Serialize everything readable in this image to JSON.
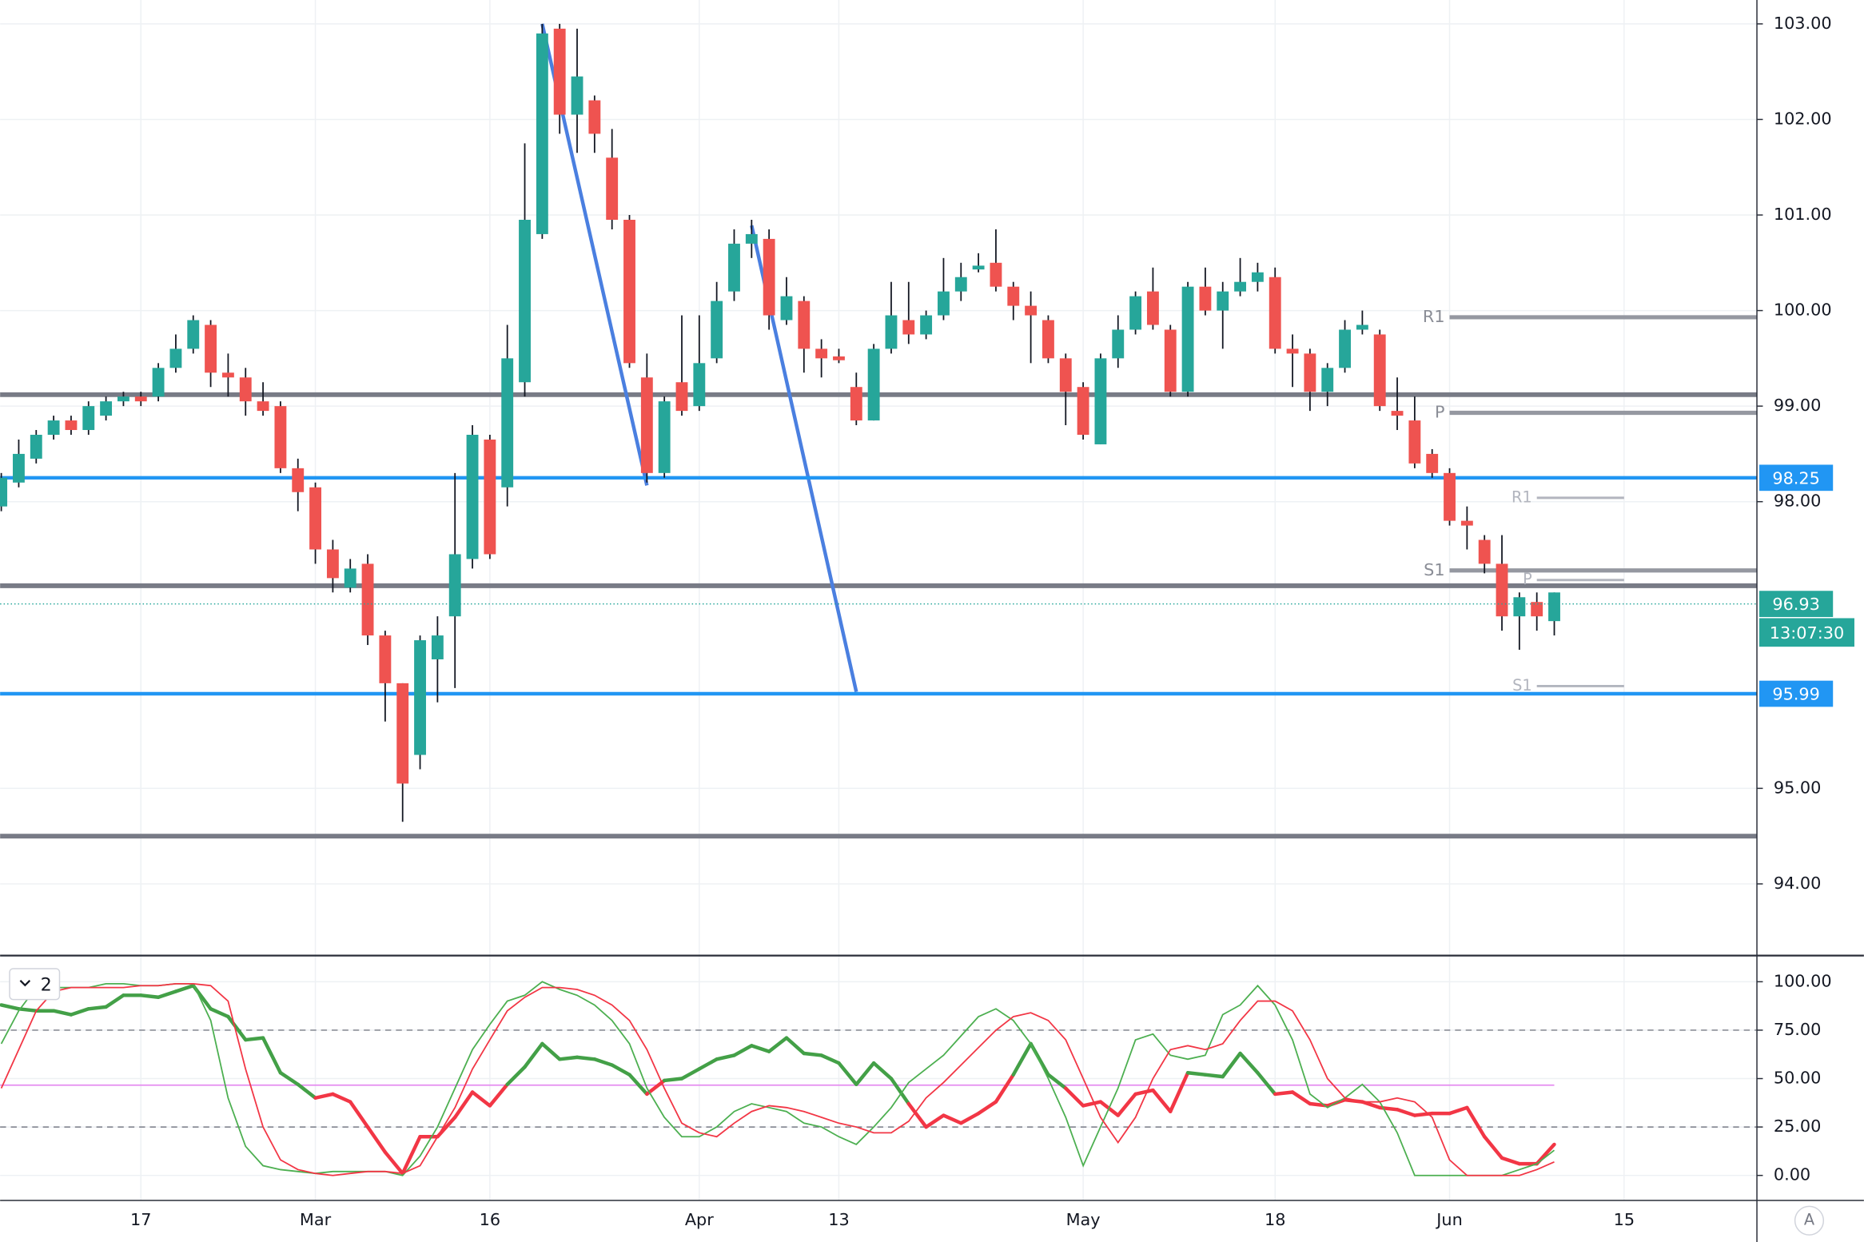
{
  "chart_data": [
    {
      "type": "candlestick",
      "categories": [
        null,
        null,
        null,
        null,
        null,
        null,
        null,
        null,
        "17",
        null,
        null,
        null,
        null,
        null,
        null,
        null,
        null,
        null,
        "Mar",
        null,
        null,
        null,
        null,
        null,
        null,
        null,
        null,
        null,
        "16",
        null,
        null,
        null,
        null,
        null,
        null,
        null,
        null,
        null,
        null,
        null,
        "Apr",
        null,
        null,
        null,
        null,
        null,
        null,
        null,
        "13",
        null,
        null,
        null,
        null,
        null,
        null,
        null,
        null,
        null,
        null,
        null,
        null,
        null,
        "May",
        null,
        null,
        null,
        null,
        null,
        null,
        null,
        null,
        null,
        null,
        "18",
        null,
        null,
        null,
        null,
        null,
        null,
        null,
        null,
        null,
        "Jun",
        null,
        null,
        null,
        null,
        null,
        null,
        null,
        null,
        null,
        "15"
      ],
      "open": [
        97.95,
        98.2,
        98.45,
        98.7,
        98.85,
        98.75,
        98.9,
        99.05,
        99.1,
        99.1,
        99.4,
        99.6,
        99.85,
        99.35,
        99.3,
        99.05,
        99.0,
        98.35,
        98.15,
        97.5,
        97.1,
        97.35,
        96.6,
        96.1,
        95.35,
        96.35,
        96.8,
        97.4,
        98.65,
        98.15,
        99.25,
        100.8,
        102.95,
        102.05,
        102.2,
        101.6,
        100.95,
        99.3,
        98.3,
        99.25,
        99.0,
        99.5,
        100.2,
        100.7,
        100.75,
        99.9,
        100.1,
        99.6,
        99.52,
        99.2,
        98.85,
        99.6,
        99.9,
        99.75,
        99.95,
        100.2,
        100.43,
        100.5,
        100.25,
        100.05,
        99.9,
        99.5,
        99.2,
        98.6,
        99.5,
        99.8,
        100.2,
        99.8,
        99.15,
        100.25,
        100.0,
        100.2,
        100.3,
        100.35,
        99.6,
        99.55,
        99.15,
        99.4,
        99.8,
        99.75,
        98.95,
        98.85,
        98.5,
        98.3,
        97.8,
        97.6,
        97.35,
        96.8,
        96.95,
        96.75,
        null,
        null,
        null,
        null
      ],
      "high": [
        98.3,
        98.65,
        98.75,
        98.9,
        98.9,
        99.05,
        99.1,
        99.15,
        99.15,
        99.45,
        99.75,
        99.95,
        99.9,
        99.55,
        99.4,
        99.25,
        99.05,
        98.45,
        98.2,
        97.6,
        97.4,
        97.45,
        96.65,
        96.1,
        96.6,
        96.8,
        98.3,
        98.8,
        98.7,
        99.85,
        101.75,
        103.0,
        103.0,
        102.95,
        102.25,
        101.9,
        101.0,
        99.55,
        99.1,
        99.95,
        99.95,
        100.3,
        100.85,
        100.95,
        100.85,
        100.35,
        100.15,
        99.7,
        99.6,
        99.35,
        99.65,
        100.3,
        100.3,
        100.0,
        100.55,
        100.5,
        100.6,
        100.85,
        100.3,
        100.2,
        99.95,
        99.55,
        99.25,
        99.55,
        99.95,
        100.2,
        100.45,
        99.85,
        100.3,
        100.45,
        100.3,
        100.55,
        100.5,
        100.45,
        99.75,
        99.6,
        99.45,
        99.9,
        100.0,
        99.8,
        99.3,
        99.1,
        98.55,
        98.35,
        97.95,
        97.65,
        97.65,
        97.05,
        97.05,
        97.05,
        null,
        null,
        null,
        null
      ],
      "low": [
        97.9,
        98.15,
        98.4,
        98.65,
        98.7,
        98.7,
        98.85,
        99.0,
        99.0,
        99.05,
        99.35,
        99.55,
        99.2,
        99.1,
        98.9,
        98.9,
        98.3,
        97.9,
        97.35,
        97.05,
        97.05,
        96.5,
        95.7,
        94.65,
        95.2,
        95.9,
        96.05,
        97.3,
        97.4,
        97.95,
        99.1,
        100.75,
        101.85,
        101.65,
        101.65,
        100.85,
        99.4,
        98.2,
        98.25,
        98.9,
        98.95,
        99.45,
        100.1,
        100.55,
        99.8,
        99.85,
        99.35,
        99.3,
        99.45,
        98.8,
        98.85,
        99.55,
        99.65,
        99.7,
        99.9,
        100.1,
        100.4,
        100.2,
        99.9,
        99.45,
        99.45,
        98.8,
        98.65,
        98.6,
        99.4,
        99.75,
        99.8,
        99.1,
        99.1,
        99.95,
        99.6,
        100.15,
        100.2,
        99.55,
        99.2,
        98.95,
        99.0,
        99.35,
        99.75,
        98.95,
        98.75,
        98.35,
        98.25,
        97.75,
        97.5,
        97.25,
        96.65,
        96.45,
        96.65,
        96.6,
        null,
        null,
        null,
        null
      ],
      "close": [
        98.25,
        98.5,
        98.7,
        98.85,
        98.75,
        99.0,
        99.05,
        99.1,
        99.05,
        99.4,
        99.6,
        99.9,
        99.35,
        99.3,
        99.05,
        98.95,
        98.35,
        98.1,
        97.5,
        97.2,
        97.3,
        96.6,
        96.1,
        95.05,
        96.55,
        96.6,
        97.45,
        98.7,
        97.45,
        99.5,
        100.95,
        102.9,
        102.05,
        102.45,
        101.85,
        100.95,
        99.45,
        98.3,
        99.05,
        98.95,
        99.45,
        100.1,
        100.7,
        100.8,
        99.95,
        100.15,
        99.6,
        99.5,
        99.48,
        98.85,
        99.6,
        99.95,
        99.75,
        99.95,
        100.2,
        100.35,
        100.47,
        100.25,
        100.05,
        99.95,
        99.5,
        99.15,
        98.7,
        99.5,
        99.8,
        100.15,
        99.85,
        99.15,
        100.25,
        100.0,
        100.2,
        100.3,
        100.4,
        99.6,
        99.55,
        99.15,
        99.4,
        99.8,
        99.85,
        99.0,
        98.9,
        98.4,
        98.3,
        97.8,
        97.75,
        97.35,
        96.8,
        97.0,
        96.8,
        97.05,
        null,
        null,
        null,
        null
      ],
      "up_color": "#26a69a",
      "down_color": "#ef5350",
      "ylim": [
        93.25,
        103.25
      ],
      "yticks": [
        {
          "value": 94,
          "label": "94.00"
        },
        {
          "value": 95,
          "label": "95.00"
        },
        {
          "value": 98,
          "label": "98.00"
        },
        {
          "value": 99,
          "label": "99.00"
        },
        {
          "value": 100,
          "label": "100.00"
        },
        {
          "value": 101,
          "label": "101.00"
        },
        {
          "value": 102,
          "label": "102.00"
        },
        {
          "value": 103,
          "label": "103.00"
        }
      ],
      "grid": true,
      "levels": [
        99.12,
        97.12,
        94.5
      ],
      "level_color": "#787b86",
      "marked_levels": [
        98.25,
        95.99
      ],
      "marked_color": "#2196f3",
      "last_price": 96.93,
      "countdown": "13:07:30",
      "pivots": [
        {
          "name": "R1",
          "value": 99.93
        },
        {
          "name": "P",
          "value": 98.93
        },
        {
          "name": "S1",
          "value": 97.28
        }
      ],
      "pivots_next": [
        {
          "name": "R1",
          "value": 98.04
        },
        {
          "name": "P",
          "value": 97.18
        },
        {
          "name": "S1",
          "value": 96.07
        }
      ],
      "trend_lines": [
        {
          "x": [
            31,
            37
          ],
          "y": [
            103.0,
            98.17
          ]
        },
        {
          "x": [
            43,
            49
          ],
          "y": [
            100.89,
            96.01
          ]
        }
      ],
      "trend_color": "#4a7fe0",
      "scale_button": "A"
    },
    {
      "type": "line",
      "badge": "2",
      "series": [
        {
          "color": "#43a047",
          "down_color": "#f23645",
          "width": 3,
          "values": [
            88,
            86,
            85,
            85,
            83,
            86,
            87,
            93,
            93,
            92,
            95,
            98,
            86,
            82,
            70,
            71,
            53,
            47,
            40,
            42,
            38,
            25,
            12,
            1,
            20,
            20,
            30,
            43,
            36,
            47,
            56,
            68,
            60,
            61,
            60,
            57,
            52,
            42,
            49,
            50,
            55,
            60,
            62,
            67,
            64,
            71,
            63,
            62,
            58,
            47,
            58,
            50,
            37,
            25,
            31,
            27,
            32,
            38,
            52,
            68,
            52,
            45,
            36,
            38,
            31,
            42,
            44,
            33,
            53,
            52,
            51,
            63,
            53,
            42,
            43,
            37,
            36,
            39,
            38,
            35,
            34,
            31,
            32,
            32,
            35,
            20,
            9,
            6,
            6,
            16
          ]
        },
        {
          "color": "#4caf50",
          "width": 1.2,
          "values": [
            68,
            85,
            97,
            97,
            97,
            97,
            99,
            99,
            98,
            98,
            99,
            99,
            80,
            40,
            15,
            5,
            3,
            2,
            1,
            2,
            2,
            2,
            2,
            0,
            10,
            25,
            45,
            65,
            78,
            90,
            93,
            100,
            96,
            93,
            88,
            80,
            68,
            45,
            30,
            20,
            20,
            25,
            33,
            37,
            35,
            33,
            27,
            25,
            20,
            16,
            25,
            35,
            48,
            55,
            62,
            72,
            82,
            86,
            80,
            68,
            50,
            30,
            5,
            25,
            45,
            70,
            73,
            62,
            60,
            62,
            83,
            88,
            98,
            88,
            70,
            42,
            35,
            40,
            47,
            38,
            22,
            0,
            0,
            0,
            0,
            0,
            0,
            3,
            6,
            13
          ]
        },
        {
          "color": "#f23645",
          "width": 1.2,
          "values": [
            45,
            65,
            85,
            95,
            97,
            97,
            97,
            97,
            98,
            98,
            99,
            99,
            98,
            90,
            55,
            25,
            8,
            3,
            1,
            0,
            1,
            2,
            2,
            1,
            5,
            20,
            35,
            55,
            70,
            85,
            92,
            97,
            97,
            96,
            93,
            88,
            80,
            65,
            45,
            27,
            22,
            20,
            27,
            33,
            36,
            35,
            33,
            30,
            27,
            25,
            22,
            22,
            28,
            40,
            48,
            57,
            66,
            75,
            82,
            84,
            80,
            70,
            50,
            30,
            17,
            30,
            50,
            65,
            67,
            65,
            68,
            80,
            90,
            90,
            85,
            70,
            50,
            40,
            38,
            38,
            40,
            38,
            30,
            8,
            0,
            0,
            0,
            0,
            3,
            7
          ]
        }
      ],
      "bands": [
        25,
        75
      ],
      "midline": 46.6,
      "midline_color": "#e58cf0",
      "ylim": [
        -12.9,
        112.9
      ],
      "yticks": [
        {
          "value": 0,
          "label": "0.00"
        },
        {
          "value": 25,
          "label": "25.00"
        },
        {
          "value": 50,
          "label": "50.00"
        },
        {
          "value": 75,
          "label": "75.00"
        },
        {
          "value": 100,
          "label": "100.00"
        }
      ],
      "grid": true
    }
  ]
}
